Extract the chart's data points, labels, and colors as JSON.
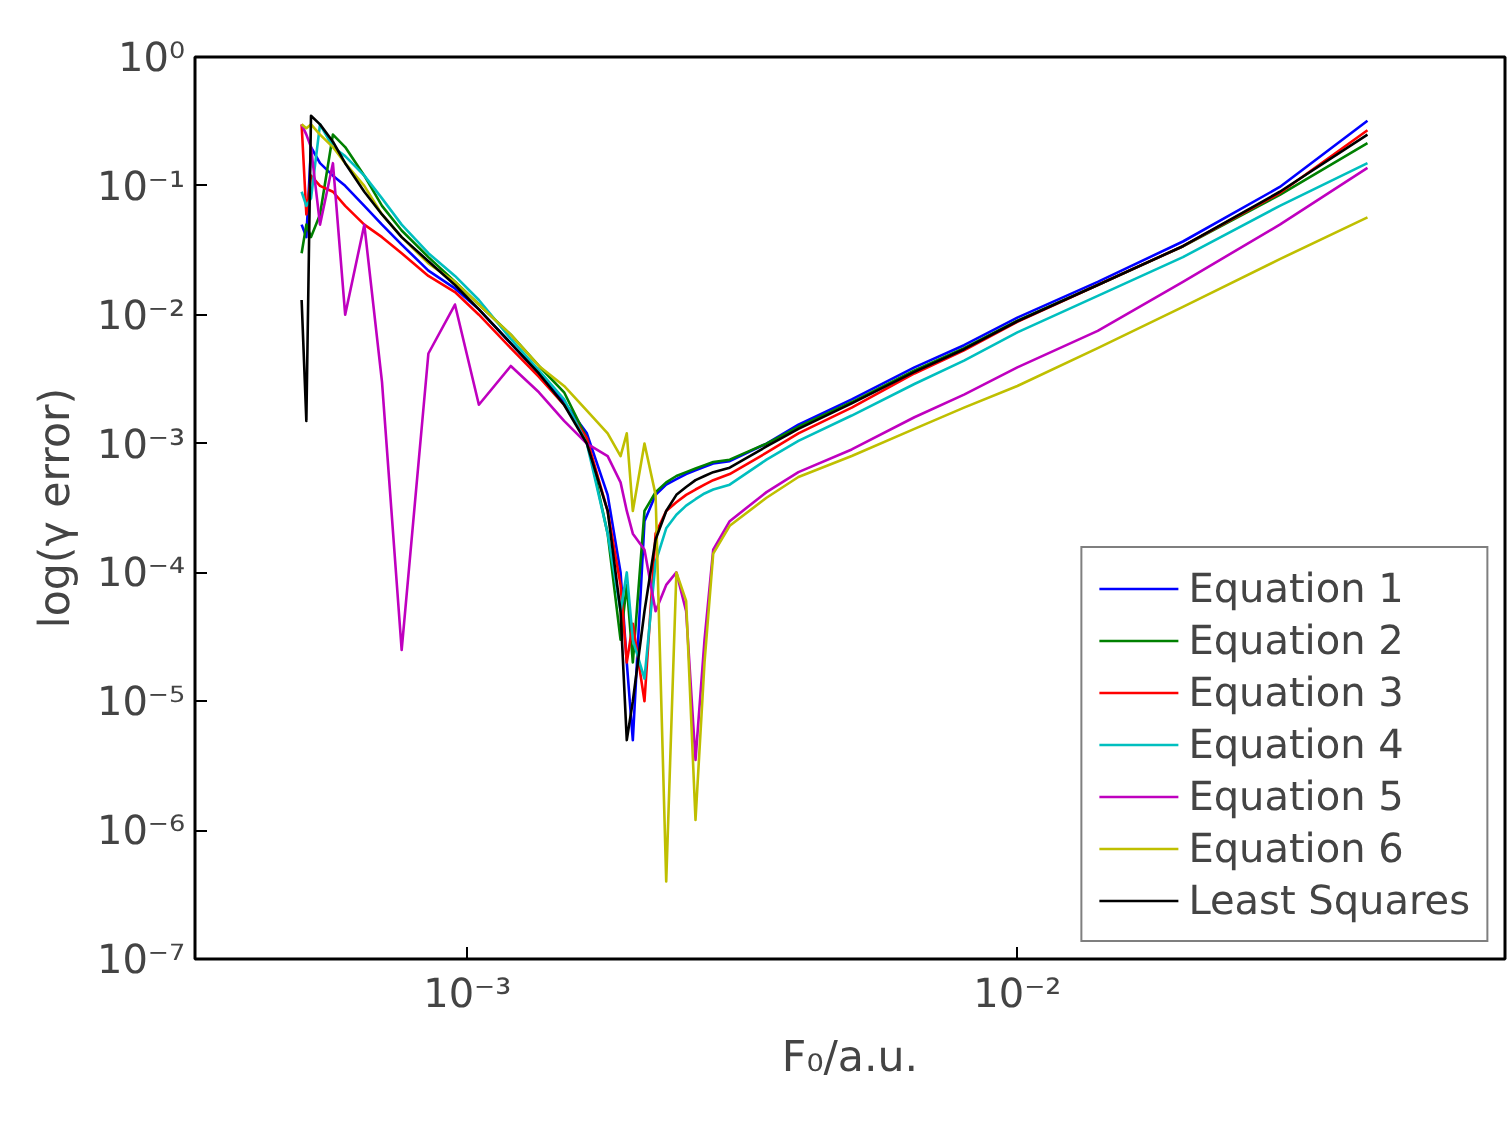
{
  "chart_data": {
    "type": "line",
    "xlabel": "F₀/a.u.",
    "ylabel": "log(γ error)",
    "log": "xy",
    "grid": false,
    "legend": "bottom right",
    "line_style": "solid",
    "marker": "none",
    "x": [
      0.0005,
      0.00051,
      0.00052,
      0.00054,
      0.00057,
      0.0006,
      0.00065,
      0.0007,
      0.00076,
      0.00085,
      0.00095,
      0.00105,
      0.0012,
      0.00135,
      0.0015,
      0.00165,
      0.0018,
      0.0019,
      0.00195,
      0.002,
      0.0021,
      0.0022,
      0.0023,
      0.0024,
      0.0025,
      0.0026,
      0.0027,
      0.0028,
      0.003,
      0.0035,
      0.004,
      0.005,
      0.0065,
      0.008,
      0.01,
      0.014,
      0.02,
      0.03,
      0.0433
    ],
    "xlim": [
      0.00032,
      0.077
    ],
    "ylim": [
      1e-07,
      1
    ],
    "xticks": [
      {
        "value": 0.001,
        "label": "10⁻³"
      },
      {
        "value": 0.01,
        "label": "10⁻²"
      }
    ],
    "yticks": [
      {
        "value": 1e-07,
        "label": "10⁻⁷"
      },
      {
        "value": 1e-06,
        "label": "10⁻⁶"
      },
      {
        "value": 1e-05,
        "label": "10⁻⁵"
      },
      {
        "value": 0.0001,
        "label": "10⁻⁴"
      },
      {
        "value": 0.001,
        "label": "10⁻³"
      },
      {
        "value": 0.01,
        "label": "10⁻²"
      },
      {
        "value": 0.1,
        "label": "10⁻¹"
      },
      {
        "value": 1,
        "label": "10⁰"
      }
    ],
    "series": [
      {
        "name": "Equation 1",
        "color": "#0000ff",
        "values": [
          0.05,
          0.04,
          0.2,
          0.15,
          0.12,
          0.1,
          0.07,
          0.05,
          0.035,
          0.022,
          0.016,
          0.011,
          0.006,
          0.0035,
          0.0021,
          0.0012,
          0.0004,
          0.0001,
          2e-05,
          5e-06,
          0.00025,
          0.0004,
          0.00048,
          0.00053,
          0.00058,
          0.00062,
          0.00066,
          0.0007,
          0.00073,
          0.001,
          0.0014,
          0.0022,
          0.0039,
          0.0058,
          0.0095,
          0.018,
          0.037,
          0.098,
          0.32
        ]
      },
      {
        "name": "Equation 2",
        "color": "#008000",
        "values": [
          0.03,
          0.05,
          0.04,
          0.06,
          0.25,
          0.2,
          0.12,
          0.07,
          0.045,
          0.028,
          0.018,
          0.012,
          0.007,
          0.004,
          0.0025,
          0.0011,
          0.0002,
          3e-05,
          8e-05,
          2e-05,
          0.0003,
          0.00042,
          0.0005,
          0.00056,
          0.0006,
          0.00064,
          0.00068,
          0.00072,
          0.00075,
          0.001,
          0.00135,
          0.0021,
          0.0037,
          0.0055,
          0.009,
          0.017,
          0.034,
          0.085,
          0.215
        ]
      },
      {
        "name": "Equation 3",
        "color": "#ff0000",
        "values": [
          0.3,
          0.06,
          0.12,
          0.1,
          0.09,
          0.07,
          0.05,
          0.04,
          0.03,
          0.02,
          0.015,
          0.01,
          0.0055,
          0.0033,
          0.002,
          0.0011,
          0.0003,
          8e-05,
          2e-05,
          4e-05,
          1e-05,
          0.0002,
          0.0003,
          0.00035,
          0.0004,
          0.00044,
          0.00048,
          0.00052,
          0.00058,
          0.00085,
          0.0012,
          0.0019,
          0.0035,
          0.0053,
          0.0088,
          0.017,
          0.034,
          0.088,
          0.27
        ]
      },
      {
        "name": "Equation 4",
        "color": "#00bfbf",
        "values": [
          0.09,
          0.07,
          0.08,
          0.3,
          0.2,
          0.17,
          0.12,
          0.08,
          0.05,
          0.03,
          0.02,
          0.013,
          0.0065,
          0.0037,
          0.0022,
          0.001,
          0.0002,
          5e-05,
          0.0001,
          3e-05,
          1.5e-05,
          0.00012,
          0.00022,
          0.00028,
          0.00033,
          0.00037,
          0.00041,
          0.00044,
          0.00048,
          0.00075,
          0.00105,
          0.00165,
          0.0029,
          0.0044,
          0.0073,
          0.014,
          0.028,
          0.07,
          0.15
        ]
      },
      {
        "name": "Equation 5",
        "color": "#bf00bf",
        "values": [
          0.3,
          0.25,
          0.2,
          0.05,
          0.15,
          0.01,
          0.05,
          0.003,
          2.5e-05,
          0.005,
          0.012,
          0.002,
          0.004,
          0.0025,
          0.0015,
          0.001,
          0.0008,
          0.0005,
          0.0003,
          0.0002,
          0.00015,
          5e-05,
          8e-05,
          0.0001,
          5e-05,
          3.5e-06,
          3e-05,
          0.00015,
          0.00025,
          0.00042,
          0.0006,
          0.0009,
          0.0016,
          0.0024,
          0.0039,
          0.0075,
          0.018,
          0.05,
          0.138
        ]
      },
      {
        "name": "Equation 6",
        "color": "#bfbf00",
        "values": [
          0.3,
          0.28,
          0.3,
          0.25,
          0.2,
          0.15,
          0.1,
          0.06,
          0.04,
          0.025,
          0.018,
          0.012,
          0.007,
          0.004,
          0.0028,
          0.0018,
          0.0012,
          0.0008,
          0.0012,
          0.0003,
          0.001,
          0.0004,
          4e-07,
          0.0001,
          6e-05,
          1.2e-06,
          2e-05,
          0.00014,
          0.00023,
          0.00038,
          0.00055,
          0.0008,
          0.0013,
          0.0019,
          0.0028,
          0.0055,
          0.0115,
          0.027,
          0.057
        ]
      },
      {
        "name": "Least Squares",
        "color": "#000000",
        "values": [
          0.013,
          0.0015,
          0.35,
          0.3,
          0.22,
          0.15,
          0.09,
          0.06,
          0.04,
          0.026,
          0.017,
          0.011,
          0.006,
          0.0035,
          0.002,
          0.001,
          0.0003,
          5e-05,
          5e-06,
          1e-05,
          5e-05,
          0.00018,
          0.0003,
          0.0004,
          0.00046,
          0.00052,
          0.00056,
          0.0006,
          0.00065,
          0.00095,
          0.0013,
          0.00205,
          0.0036,
          0.0054,
          0.0089,
          0.017,
          0.034,
          0.09,
          0.25
        ]
      }
    ]
  }
}
